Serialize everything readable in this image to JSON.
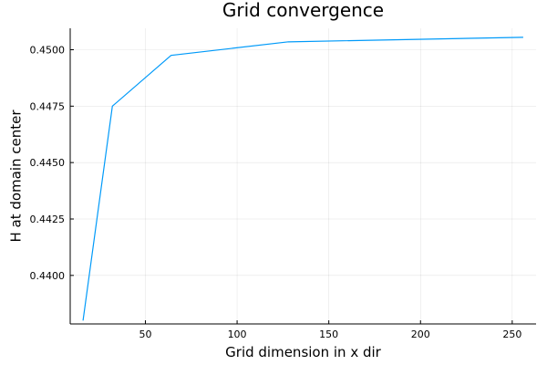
{
  "chart_data": {
    "type": "line",
    "title": "Grid convergence",
    "xlabel": "Grid dimension in x dir",
    "ylabel": "H at domain center",
    "xlim": [
      9,
      263
    ],
    "ylim": [
      0.43785,
      0.45095
    ],
    "xticks": [
      50,
      100,
      150,
      200,
      250
    ],
    "xtick_labels": [
      "50",
      "100",
      "150",
      "200",
      "250"
    ],
    "yticks": [
      0.44,
      0.4425,
      0.445,
      0.4475,
      0.45
    ],
    "ytick_labels": [
      "0.4400",
      "0.4425",
      "0.4450",
      "0.4475",
      "0.4500"
    ],
    "grid": true,
    "legend": "none",
    "series": [
      {
        "color": "#009af9",
        "x": [
          16,
          32,
          64,
          128,
          256
        ],
        "y": [
          0.438,
          0.4475,
          0.44975,
          0.45035,
          0.45055
        ]
      }
    ]
  }
}
